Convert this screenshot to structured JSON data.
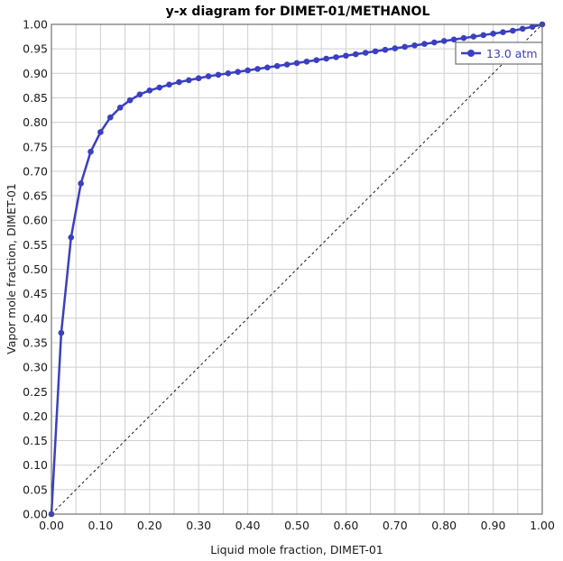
{
  "chart_data": {
    "type": "line",
    "title": "y-x diagram for DIMET-01/METHANOL",
    "xlabel": "Liquid mole fraction, DIMET-01",
    "ylabel": "Vapor mole fraction, DIMET-01",
    "xlim": [
      0,
      1
    ],
    "ylim": [
      0,
      1
    ],
    "x_ticks": [
      "0.00",
      "0.10",
      "0.20",
      "0.30",
      "0.40",
      "0.50",
      "0.60",
      "0.70",
      "0.80",
      "0.90",
      "1.00"
    ],
    "y_ticks": [
      "0.00",
      "0.05",
      "0.10",
      "0.15",
      "0.20",
      "0.25",
      "0.30",
      "0.35",
      "0.40",
      "0.45",
      "0.50",
      "0.55",
      "0.60",
      "0.65",
      "0.70",
      "0.75",
      "0.80",
      "0.85",
      "0.90",
      "0.95",
      "1.00"
    ],
    "grid": true,
    "legend_position": "top-right",
    "colors": {
      "series": "#3b3fc1",
      "diagonal": "#000000",
      "grid": "#cfcfcf"
    },
    "series": [
      {
        "name": "13.0 atm",
        "x": [
          0.0,
          0.02,
          0.04,
          0.06,
          0.08,
          0.1,
          0.12,
          0.14,
          0.16,
          0.18,
          0.2,
          0.22,
          0.24,
          0.26,
          0.28,
          0.3,
          0.32,
          0.34,
          0.36,
          0.38,
          0.4,
          0.42,
          0.44,
          0.46,
          0.48,
          0.5,
          0.52,
          0.54,
          0.56,
          0.58,
          0.6,
          0.62,
          0.64,
          0.66,
          0.68,
          0.7,
          0.72,
          0.74,
          0.76,
          0.78,
          0.8,
          0.82,
          0.84,
          0.86,
          0.88,
          0.9,
          0.92,
          0.94,
          0.96,
          0.98,
          1.0
        ],
        "y": [
          0.0,
          0.37,
          0.565,
          0.675,
          0.74,
          0.78,
          0.81,
          0.83,
          0.845,
          0.857,
          0.865,
          0.871,
          0.877,
          0.882,
          0.886,
          0.89,
          0.894,
          0.897,
          0.9,
          0.903,
          0.906,
          0.909,
          0.912,
          0.915,
          0.918,
          0.921,
          0.924,
          0.927,
          0.93,
          0.933,
          0.936,
          0.939,
          0.942,
          0.945,
          0.948,
          0.951,
          0.954,
          0.957,
          0.96,
          0.963,
          0.966,
          0.969,
          0.972,
          0.975,
          0.978,
          0.981,
          0.984,
          0.987,
          0.991,
          0.995,
          1.0
        ]
      }
    ],
    "reference_line": {
      "x": [
        0,
        1
      ],
      "y": [
        0,
        1
      ],
      "style": "dashed"
    }
  }
}
